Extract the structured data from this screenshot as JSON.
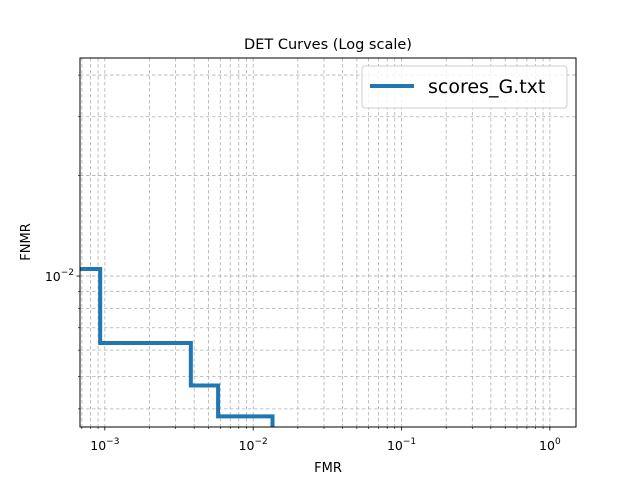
{
  "chart_data": {
    "type": "line",
    "title": "DET Curves (Log scale)",
    "xlabel": "FMR",
    "ylabel": "FNMR",
    "xscale": "log",
    "yscale": "log",
    "xlim": [
      0.00068,
      1.5
    ],
    "ylim": [
      0.00353,
      0.045
    ],
    "grid": true,
    "grid_which": "both",
    "legend_position": "top-right",
    "x_ticks": [
      {
        "value": 0.001,
        "base": "10",
        "exp": "−3"
      },
      {
        "value": 0.01,
        "base": "10",
        "exp": "−2"
      },
      {
        "value": 0.1,
        "base": "10",
        "exp": "−1"
      },
      {
        "value": 1,
        "base": "10",
        "exp": "0"
      }
    ],
    "y_ticks": [
      {
        "value": 0.01,
        "base": "10",
        "exp": "−2"
      }
    ],
    "series": [
      {
        "name": "scores_G.txt",
        "color": "#1f77b4",
        "drawstyle": "steps",
        "points": [
          [
            0.00068,
            0.0105
          ],
          [
            0.00093,
            0.0105
          ],
          [
            0.00093,
            0.0063
          ],
          [
            0.0038,
            0.0063
          ],
          [
            0.0038,
            0.0047
          ],
          [
            0.0058,
            0.0047
          ],
          [
            0.0058,
            0.0038
          ],
          [
            0.0135,
            0.0038
          ],
          [
            0.0135,
            0.00353
          ]
        ]
      }
    ]
  }
}
